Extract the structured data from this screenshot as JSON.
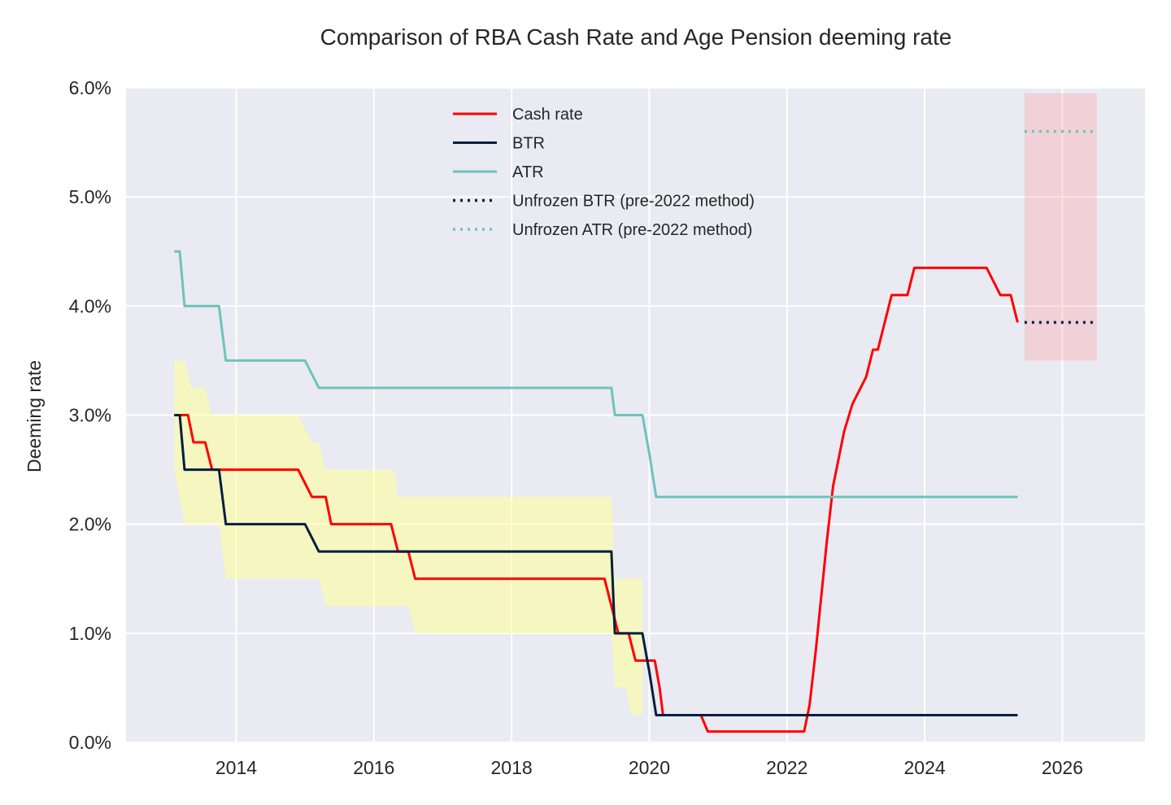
{
  "chart_data": {
    "type": "line",
    "title": "Comparison of RBA Cash Rate and Age Pension deeming rate",
    "xlabel": "",
    "ylabel": "Deeming rate",
    "xlim": [
      2012.4,
      2027.2
    ],
    "ylim": [
      0,
      6.0
    ],
    "x_ticks": [
      2014,
      2016,
      2018,
      2020,
      2022,
      2024,
      2026
    ],
    "y_ticks": [
      0,
      1,
      2,
      3,
      4,
      5,
      6
    ],
    "y_tick_labels": [
      "0.0%",
      "1.0%",
      "2.0%",
      "3.0%",
      "4.0%",
      "5.0%",
      "6.0%"
    ],
    "grid": true,
    "legend_position": "upper center",
    "background": "#eaeaf2",
    "series": [
      {
        "name": "Cash rate",
        "color": "#ff0000",
        "style": "solid",
        "points": [
          [
            2013.1,
            3.0
          ],
          [
            2013.3,
            3.0
          ],
          [
            2013.38,
            2.75
          ],
          [
            2013.55,
            2.75
          ],
          [
            2013.65,
            2.5
          ],
          [
            2014.9,
            2.5
          ],
          [
            2015.1,
            2.25
          ],
          [
            2015.3,
            2.25
          ],
          [
            2015.38,
            2.0
          ],
          [
            2016.25,
            2.0
          ],
          [
            2016.35,
            1.75
          ],
          [
            2016.5,
            1.75
          ],
          [
            2016.6,
            1.5
          ],
          [
            2019.35,
            1.5
          ],
          [
            2019.45,
            1.25
          ],
          [
            2019.55,
            1.0
          ],
          [
            2019.7,
            1.0
          ],
          [
            2019.8,
            0.75
          ],
          [
            2020.08,
            0.75
          ],
          [
            2020.15,
            0.5
          ],
          [
            2020.2,
            0.25
          ],
          [
            2020.75,
            0.25
          ],
          [
            2020.85,
            0.1
          ],
          [
            2022.25,
            0.1
          ],
          [
            2022.33,
            0.35
          ],
          [
            2022.42,
            0.85
          ],
          [
            2022.5,
            1.35
          ],
          [
            2022.58,
            1.85
          ],
          [
            2022.67,
            2.35
          ],
          [
            2022.83,
            2.85
          ],
          [
            2022.95,
            3.1
          ],
          [
            2023.15,
            3.35
          ],
          [
            2023.25,
            3.6
          ],
          [
            2023.32,
            3.6
          ],
          [
            2023.42,
            3.85
          ],
          [
            2023.52,
            4.1
          ],
          [
            2023.75,
            4.1
          ],
          [
            2023.85,
            4.35
          ],
          [
            2024.9,
            4.35
          ],
          [
            2025.1,
            4.1
          ],
          [
            2025.25,
            4.1
          ],
          [
            2025.35,
            3.85
          ]
        ]
      },
      {
        "name": "BTR",
        "color": "#001f3f",
        "style": "solid",
        "points": [
          [
            2013.1,
            3.0
          ],
          [
            2013.18,
            3.0
          ],
          [
            2013.25,
            2.5
          ],
          [
            2013.75,
            2.5
          ],
          [
            2013.85,
            2.0
          ],
          [
            2015.0,
            2.0
          ],
          [
            2015.2,
            1.75
          ],
          [
            2019.45,
            1.75
          ],
          [
            2019.5,
            1.0
          ],
          [
            2019.9,
            1.0
          ],
          [
            2020.0,
            0.65
          ],
          [
            2020.1,
            0.25
          ],
          [
            2025.35,
            0.25
          ]
        ]
      },
      {
        "name": "ATR",
        "color": "#6cc4bc",
        "style": "solid",
        "points": [
          [
            2013.1,
            4.5
          ],
          [
            2013.18,
            4.5
          ],
          [
            2013.25,
            4.0
          ],
          [
            2013.75,
            4.0
          ],
          [
            2013.85,
            3.5
          ],
          [
            2015.0,
            3.5
          ],
          [
            2015.2,
            3.25
          ],
          [
            2019.45,
            3.25
          ],
          [
            2019.5,
            3.0
          ],
          [
            2019.9,
            3.0
          ],
          [
            2020.0,
            2.65
          ],
          [
            2020.1,
            2.25
          ],
          [
            2025.35,
            2.25
          ]
        ]
      },
      {
        "name": "Unfrozen BTR (pre-2022 method)",
        "color": "#001f3f",
        "style": "dotted",
        "points": [
          [
            2025.45,
            3.85
          ],
          [
            2026.5,
            3.85
          ]
        ]
      },
      {
        "name": "Unfrozen ATR (pre-2022 method)",
        "color": "#6cc4bc",
        "style": "dotted",
        "points": [
          [
            2025.45,
            5.6
          ],
          [
            2026.5,
            5.6
          ]
        ]
      }
    ],
    "bands": [
      {
        "color": "#ffff99",
        "opacity": 0.55,
        "points": [
          [
            2013.1,
            2.5,
            3.5
          ],
          [
            2013.25,
            2.0,
            3.5
          ],
          [
            2013.35,
            2.0,
            3.25
          ],
          [
            2013.55,
            2.0,
            3.25
          ],
          [
            2013.65,
            2.0,
            3.0
          ],
          [
            2013.75,
            2.0,
            3.0
          ],
          [
            2013.85,
            1.5,
            3.0
          ],
          [
            2014.9,
            1.5,
            3.0
          ],
          [
            2015.1,
            1.5,
            2.75
          ],
          [
            2015.2,
            1.5,
            2.75
          ],
          [
            2015.3,
            1.25,
            2.5
          ],
          [
            2016.3,
            1.25,
            2.5
          ],
          [
            2016.35,
            1.25,
            2.25
          ],
          [
            2016.5,
            1.25,
            2.25
          ],
          [
            2016.6,
            1.0,
            2.25
          ],
          [
            2019.45,
            1.0,
            2.25
          ],
          [
            2019.5,
            0.5,
            1.5
          ],
          [
            2019.65,
            0.5,
            1.5
          ],
          [
            2019.75,
            0.25,
            1.5
          ],
          [
            2019.9,
            0.25,
            1.5
          ]
        ]
      },
      {
        "color": "#ff9999",
        "opacity": 0.3,
        "points": [
          [
            2025.45,
            3.5,
            5.95
          ],
          [
            2026.5,
            3.5,
            5.95
          ]
        ]
      }
    ]
  }
}
